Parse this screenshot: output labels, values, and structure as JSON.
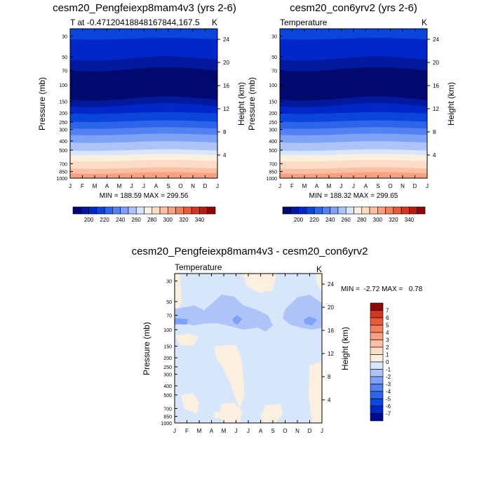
{
  "chart_data": [
    {
      "type": "heatmap",
      "title": "cesm20_Pengfeiexp8mam4v3 (yrs 2-6)",
      "subtitle_left": "T at -0.47120418848167844,167.5",
      "subtitle_right": "K",
      "ylabel": "Pressure (mb)",
      "ylabel_right": "Height (km)",
      "xticks": [
        "J",
        "F",
        "M",
        "A",
        "M",
        "J",
        "J",
        "A",
        "S",
        "O",
        "N",
        "D",
        "J"
      ],
      "yticks": [
        "30",
        "50",
        "70",
        "100",
        "150",
        "200",
        "250",
        "300",
        "400",
        "500",
        "700",
        "850",
        "1000"
      ],
      "ytick_values": [
        30,
        50,
        70,
        100,
        150,
        200,
        250,
        300,
        400,
        500,
        700,
        850,
        1000
      ],
      "height_ticks": [
        "24",
        "20",
        "16",
        "12",
        "8",
        "4"
      ],
      "height_values": [
        24,
        20,
        16,
        12,
        8,
        4
      ],
      "yscale": "log",
      "ylim": [
        1000,
        25
      ],
      "stats": "MIN = 188.59 MAX = 299.56",
      "colorbar_labels": [
        "200",
        "220",
        "240",
        "260",
        "280",
        "300",
        "320",
        "340"
      ],
      "colorbar_colors": [
        "#000a6e",
        "#00199e",
        "#0028c8",
        "#0a46dc",
        "#2c64ea",
        "#5282f2",
        "#7ea2f6",
        "#aec4f8",
        "#d7e6fb",
        "#fbf0e0",
        "#fcdcc4",
        "#fbc0a4",
        "#f8a080",
        "#f27f5e",
        "#e65c3c",
        "#d63620",
        "#b81c10",
        "#8c0a05"
      ],
      "contour_bands": [
        {
          "p_top": 25,
          "p_bottom": 32,
          "color": "#0a46dc"
        },
        {
          "p_top": 32,
          "p_bottom": 52,
          "color": "#0028c8"
        },
        {
          "p_top": 52,
          "p_bottom": 68,
          "color": "#00199e"
        },
        {
          "p_top": 68,
          "p_bottom": 140,
          "color": "#000a6e"
        },
        {
          "p_top": 140,
          "p_bottom": 165,
          "color": "#00199e"
        },
        {
          "p_top": 165,
          "p_bottom": 200,
          "color": "#0028c8"
        },
        {
          "p_top": 200,
          "p_bottom": 245,
          "color": "#0a46dc"
        },
        {
          "p_top": 245,
          "p_bottom": 290,
          "color": "#2c64ea"
        },
        {
          "p_top": 290,
          "p_bottom": 340,
          "color": "#5282f2"
        },
        {
          "p_top": 340,
          "p_bottom": 410,
          "color": "#7ea2f6"
        },
        {
          "p_top": 410,
          "p_bottom": 500,
          "color": "#aec4f8"
        },
        {
          "p_top": 500,
          "p_bottom": 560,
          "color": "#d7e6fb"
        },
        {
          "p_top": 560,
          "p_bottom": 650,
          "color": "#fbf0e0"
        },
        {
          "p_top": 650,
          "p_bottom": 780,
          "color": "#fcdcc4"
        },
        {
          "p_top": 780,
          "p_bottom": 880,
          "color": "#fbc0a4"
        },
        {
          "p_top": 880,
          "p_bottom": 1000,
          "color": "#f8a080"
        }
      ]
    },
    {
      "type": "heatmap",
      "title": "cesm20_con6yrv2 (yrs 2-6)",
      "subtitle_left": "Temperature",
      "subtitle_right": "K",
      "ylabel": "Pressure (mb)",
      "ylabel_right": "Height (km)",
      "xticks": [
        "J",
        "F",
        "M",
        "A",
        "M",
        "J",
        "J",
        "A",
        "S",
        "O",
        "N",
        "D",
        "J"
      ],
      "yticks": [
        "30",
        "50",
        "70",
        "100",
        "150",
        "200",
        "250",
        "300",
        "400",
        "500",
        "700",
        "850",
        "1000"
      ],
      "ytick_values": [
        30,
        50,
        70,
        100,
        150,
        200,
        250,
        300,
        400,
        500,
        700,
        850,
        1000
      ],
      "height_ticks": [
        "24",
        "20",
        "16",
        "12",
        "8",
        "4"
      ],
      "height_values": [
        24,
        20,
        16,
        12,
        8,
        4
      ],
      "yscale": "log",
      "ylim": [
        1000,
        25
      ],
      "stats": "MIN = 188.32 MAX = 299.65",
      "colorbar_labels": [
        "200",
        "220",
        "240",
        "260",
        "280",
        "300",
        "320",
        "340"
      ],
      "colorbar_colors": [
        "#000a6e",
        "#00199e",
        "#0028c8",
        "#0a46dc",
        "#2c64ea",
        "#5282f2",
        "#7ea2f6",
        "#aec4f8",
        "#d7e6fb",
        "#fbf0e0",
        "#fcdcc4",
        "#fbc0a4",
        "#f8a080",
        "#f27f5e",
        "#e65c3c",
        "#d63620",
        "#b81c10",
        "#8c0a05"
      ],
      "contour_bands": [
        {
          "p_top": 25,
          "p_bottom": 32,
          "color": "#0a46dc"
        },
        {
          "p_top": 32,
          "p_bottom": 52,
          "color": "#0028c8"
        },
        {
          "p_top": 52,
          "p_bottom": 68,
          "color": "#00199e"
        },
        {
          "p_top": 68,
          "p_bottom": 140,
          "color": "#000a6e"
        },
        {
          "p_top": 140,
          "p_bottom": 165,
          "color": "#00199e"
        },
        {
          "p_top": 165,
          "p_bottom": 200,
          "color": "#0028c8"
        },
        {
          "p_top": 200,
          "p_bottom": 245,
          "color": "#0a46dc"
        },
        {
          "p_top": 245,
          "p_bottom": 290,
          "color": "#2c64ea"
        },
        {
          "p_top": 290,
          "p_bottom": 340,
          "color": "#5282f2"
        },
        {
          "p_top": 340,
          "p_bottom": 410,
          "color": "#7ea2f6"
        },
        {
          "p_top": 410,
          "p_bottom": 500,
          "color": "#aec4f8"
        },
        {
          "p_top": 500,
          "p_bottom": 560,
          "color": "#d7e6fb"
        },
        {
          "p_top": 560,
          "p_bottom": 650,
          "color": "#fbf0e0"
        },
        {
          "p_top": 650,
          "p_bottom": 780,
          "color": "#fcdcc4"
        },
        {
          "p_top": 780,
          "p_bottom": 880,
          "color": "#fbc0a4"
        },
        {
          "p_top": 880,
          "p_bottom": 1000,
          "color": "#f8a080"
        }
      ]
    },
    {
      "type": "heatmap",
      "title": "cesm20_Pengfeiexp8mam4v3 - cesm20_con6yrv2",
      "subtitle_left": "Temperature",
      "subtitle_right": "K",
      "ylabel": "Pressure (mb)",
      "ylabel_right": "Height (km)",
      "xticks": [
        "J",
        "F",
        "M",
        "A",
        "M",
        "J",
        "J",
        "A",
        "S",
        "O",
        "N",
        "D",
        "J"
      ],
      "yticks": [
        "30",
        "50",
        "70",
        "100",
        "150",
        "200",
        "250",
        "300",
        "400",
        "500",
        "700",
        "850",
        "1000"
      ],
      "ytick_values": [
        30,
        50,
        70,
        100,
        150,
        200,
        250,
        300,
        400,
        500,
        700,
        850,
        1000
      ],
      "height_ticks": [
        "24",
        "20",
        "16",
        "12",
        "8",
        "4"
      ],
      "height_values": [
        24,
        20,
        16,
        12,
        8,
        4
      ],
      "yscale": "log",
      "ylim": [
        1000,
        25
      ],
      "stats": "MIN =  -2.72 MAX =   0.78",
      "colorbar_labels": [
        "7",
        "6",
        "5",
        "4",
        "3",
        "2",
        "1",
        "0",
        "-1",
        "-2",
        "-3",
        "-4",
        "-5",
        "-6",
        "-7"
      ],
      "colorbar_colors": [
        "#8c0a05",
        "#d63620",
        "#e65c3c",
        "#f27f5e",
        "#f8a080",
        "#fbc0a4",
        "#fcdcc4",
        "#fbf0e0",
        "#d7e6fb",
        "#aec4f8",
        "#7ea2f6",
        "#5282f2",
        "#2c64ea",
        "#0a46dc",
        "#0028c8",
        "#000a8c"
      ],
      "background_color": "#d7e6fb",
      "warm_color": "#fbf0e0",
      "cool_color_1": "#aec4f8",
      "cool_color_2": "#7ea2f6",
      "regions": [
        {
          "level": 1,
          "points": [
            [
              0.0,
              25
            ],
            [
              0.4,
              25
            ],
            [
              0.6,
              48
            ],
            [
              0.3,
              60
            ],
            [
              0.0,
              58
            ]
          ]
        },
        {
          "level": 1,
          "points": [
            [
              5.5,
              25
            ],
            [
              8.3,
              25
            ],
            [
              8.0,
              38
            ],
            [
              6.8,
              40
            ],
            [
              5.9,
              34
            ]
          ]
        },
        {
          "level": 1,
          "points": [
            [
              11.5,
              25
            ],
            [
              12.0,
              25
            ],
            [
              12.0,
              40
            ],
            [
              11.6,
              32
            ]
          ]
        },
        {
          "level": 1,
          "points": [
            [
              0.1,
              115
            ],
            [
              1.2,
              110
            ],
            [
              1.9,
              120
            ],
            [
              1.5,
              150
            ],
            [
              0.4,
              145
            ]
          ]
        },
        {
          "level": 1,
          "points": [
            [
              3.2,
              150
            ],
            [
              5.0,
              145
            ],
            [
              5.5,
              220
            ],
            [
              5.7,
              500
            ],
            [
              5.3,
              700
            ],
            [
              4.9,
              520
            ],
            [
              4.2,
              300
            ],
            [
              3.4,
              200
            ]
          ]
        },
        {
          "level": 1,
          "points": [
            [
              0.5,
              500
            ],
            [
              1.5,
              480
            ],
            [
              2.0,
              600
            ],
            [
              1.8,
              800
            ],
            [
              0.8,
              700
            ]
          ]
        },
        {
          "level": 1,
          "points": [
            [
              3.8,
              630
            ],
            [
              4.8,
              600
            ],
            [
              5.5,
              750
            ],
            [
              5.3,
              1000
            ],
            [
              4.0,
              1000
            ],
            [
              3.6,
              850
            ]
          ]
        },
        {
          "level": 1,
          "points": [
            [
              7.4,
              650
            ],
            [
              8.6,
              620
            ],
            [
              8.8,
              800
            ],
            [
              8.2,
              1000
            ],
            [
              7.3,
              1000
            ],
            [
              7.0,
              850
            ]
          ]
        },
        {
          "level": 1,
          "points": [
            [
              11.0,
              240
            ],
            [
              12.0,
              220
            ],
            [
              12.0,
              1000
            ],
            [
              11.2,
              1000
            ],
            [
              10.9,
              500
            ]
          ]
        },
        {
          "level": 1,
          "points": [
            [
              3.2,
              760
            ],
            [
              3.7,
              760
            ],
            [
              3.6,
              900
            ],
            [
              3.2,
              880
            ]
          ]
        },
        {
          "level": -1,
          "points": [
            [
              0.0,
              60
            ],
            [
              1.6,
              55
            ],
            [
              2.4,
              62
            ],
            [
              3.2,
              50
            ],
            [
              3.8,
              42
            ],
            [
              4.8,
              44
            ],
            [
              5.6,
              55
            ],
            [
              6.8,
              62
            ],
            [
              7.6,
              70
            ],
            [
              8.0,
              90
            ],
            [
              7.4,
              105
            ],
            [
              6.8,
              95
            ],
            [
              5.6,
              100
            ],
            [
              4.6,
              92
            ],
            [
              3.4,
              85
            ],
            [
              2.4,
              86
            ],
            [
              1.6,
              90
            ],
            [
              0.6,
              85
            ],
            [
              0.0,
              90
            ]
          ]
        },
        {
          "level": -1,
          "points": [
            [
              9.0,
              60
            ],
            [
              10.0,
              45
            ],
            [
              11.0,
              42
            ],
            [
              12.0,
              52
            ],
            [
              12.0,
              95
            ],
            [
              11.2,
              100
            ],
            [
              10.4,
              96
            ],
            [
              9.4,
              88
            ],
            [
              8.8,
              75
            ]
          ]
        },
        {
          "level": -2,
          "points": [
            [
              0.0,
              75
            ],
            [
              1.1,
              77
            ],
            [
              1.0,
              88
            ],
            [
              0.0,
              87
            ]
          ]
        },
        {
          "level": -2,
          "points": [
            [
              4.7,
              76
            ],
            [
              5.1,
              70
            ],
            [
              5.5,
              77
            ],
            [
              5.1,
              88
            ],
            [
              4.8,
              84
            ]
          ]
        },
        {
          "level": -2,
          "points": [
            [
              10.5,
              78
            ],
            [
              11.0,
              72
            ],
            [
              11.6,
              78
            ],
            [
              11.2,
              90
            ],
            [
              10.6,
              86
            ]
          ]
        }
      ]
    }
  ]
}
